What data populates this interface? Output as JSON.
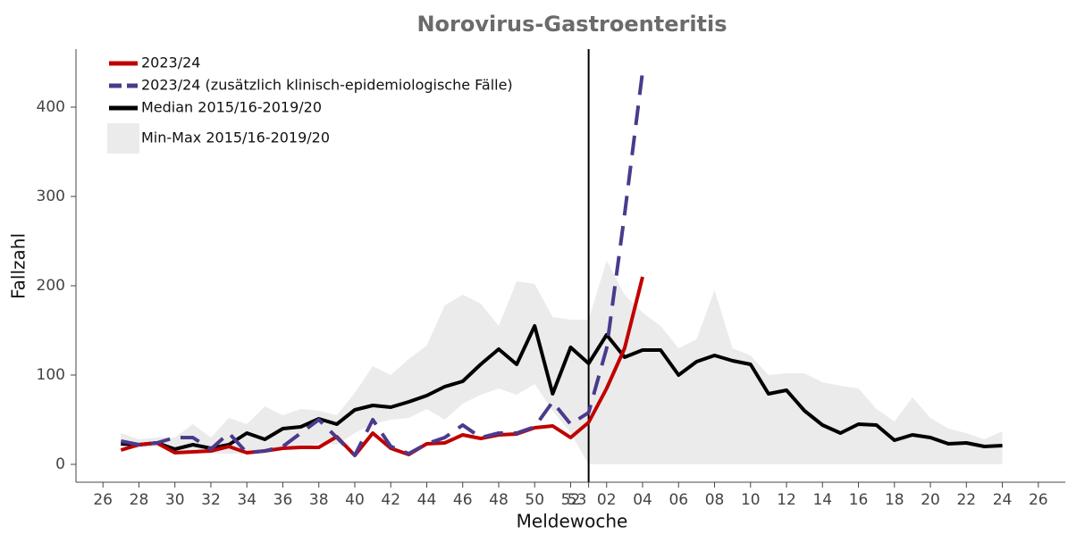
{
  "chart_data": {
    "type": "line",
    "title": "Norovirus-Gastroenteritis",
    "x_label": "Meldewoche",
    "y_label": "Fallzahl",
    "categories": [
      "26",
      null,
      "28",
      null,
      "30",
      null,
      "32",
      null,
      "34",
      null,
      "36",
      null,
      "38",
      null,
      "40",
      null,
      "42",
      null,
      "44",
      null,
      "46",
      null,
      "48",
      null,
      "50",
      null,
      "52",
      "53",
      "02",
      null,
      "04",
      null,
      "06",
      null,
      "08",
      null,
      "10",
      null,
      "12",
      null,
      "14",
      null,
      "16",
      null,
      "18",
      null,
      "20",
      null,
      "22",
      null,
      "24",
      null,
      "26"
    ],
    "ylim": [
      -20,
      465
    ],
    "yticks": [
      0,
      100,
      200,
      300,
      400
    ],
    "vline_category": "53",
    "legend": "top-left",
    "series": [
      {
        "name": "Min-Max 2015/16-2019/20",
        "color": "#ebebeb",
        "kind": "band",
        "lower": [
          null,
          20,
          18,
          20,
          12,
          15,
          12,
          12,
          12,
          15,
          16,
          17,
          24,
          22,
          35,
          45,
          50,
          52,
          62,
          50,
          68,
          78,
          85,
          78,
          90,
          60,
          35,
          0,
          0,
          0,
          0,
          0,
          0,
          0,
          0,
          0,
          0,
          0,
          0,
          0,
          0,
          0,
          0,
          0,
          0,
          0,
          0,
          0,
          0,
          0,
          0,
          null,
          null
        ],
        "upper": [
          null,
          35,
          28,
          30,
          30,
          45,
          30,
          52,
          45,
          65,
          55,
          62,
          60,
          55,
          80,
          110,
          100,
          118,
          133,
          178,
          190,
          180,
          155,
          205,
          202,
          165,
          162,
          162,
          228,
          190,
          170,
          155,
          130,
          140,
          195,
          130,
          122,
          100,
          102,
          102,
          92,
          88,
          85,
          62,
          48,
          75,
          52,
          40,
          35,
          28,
          37,
          null,
          null
        ]
      },
      {
        "name": "2023/24",
        "color": "#c00000",
        "kind": "line",
        "values": [
          null,
          16,
          22,
          24,
          13,
          14,
          15,
          20,
          13,
          15,
          18,
          19,
          19,
          31,
          10,
          35,
          18,
          11,
          23,
          24,
          33,
          29,
          33,
          34,
          41,
          43,
          30,
          47,
          85,
          130,
          210,
          null,
          null,
          null,
          null,
          null,
          null,
          null,
          null,
          null,
          null,
          null,
          null,
          null,
          null,
          null,
          null,
          null,
          null,
          null,
          null,
          null,
          null
        ]
      },
      {
        "name": "2023/24 (zusätzlich klinisch-epidemiologische Fälle)",
        "color": "#4b3a8c",
        "kind": "line",
        "dashed": true,
        "values": [
          null,
          26,
          22,
          24,
          30,
          30,
          17,
          35,
          13,
          15,
          20,
          35,
          50,
          30,
          10,
          50,
          20,
          12,
          23,
          30,
          44,
          30,
          35,
          35,
          42,
          70,
          45,
          58,
          130,
          280,
          440,
          null,
          null,
          null,
          null,
          null,
          null,
          null,
          null,
          null,
          null,
          null,
          null,
          null,
          null,
          null,
          null,
          null,
          null,
          null,
          null,
          null,
          null
        ]
      },
      {
        "name": "Median 2015/16-2019/20",
        "color": "#000000",
        "kind": "line",
        "values": [
          null,
          23,
          22,
          24,
          17,
          22,
          18,
          22,
          35,
          28,
          40,
          42,
          51,
          45,
          61,
          66,
          64,
          70,
          77,
          87,
          93,
          112,
          129,
          112,
          155,
          79,
          131,
          113,
          145,
          120,
          128,
          128,
          100,
          115,
          122,
          116,
          112,
          79,
          83,
          60,
          44,
          35,
          45,
          44,
          27,
          33,
          30,
          23,
          24,
          20,
          21,
          null,
          null
        ]
      }
    ]
  }
}
